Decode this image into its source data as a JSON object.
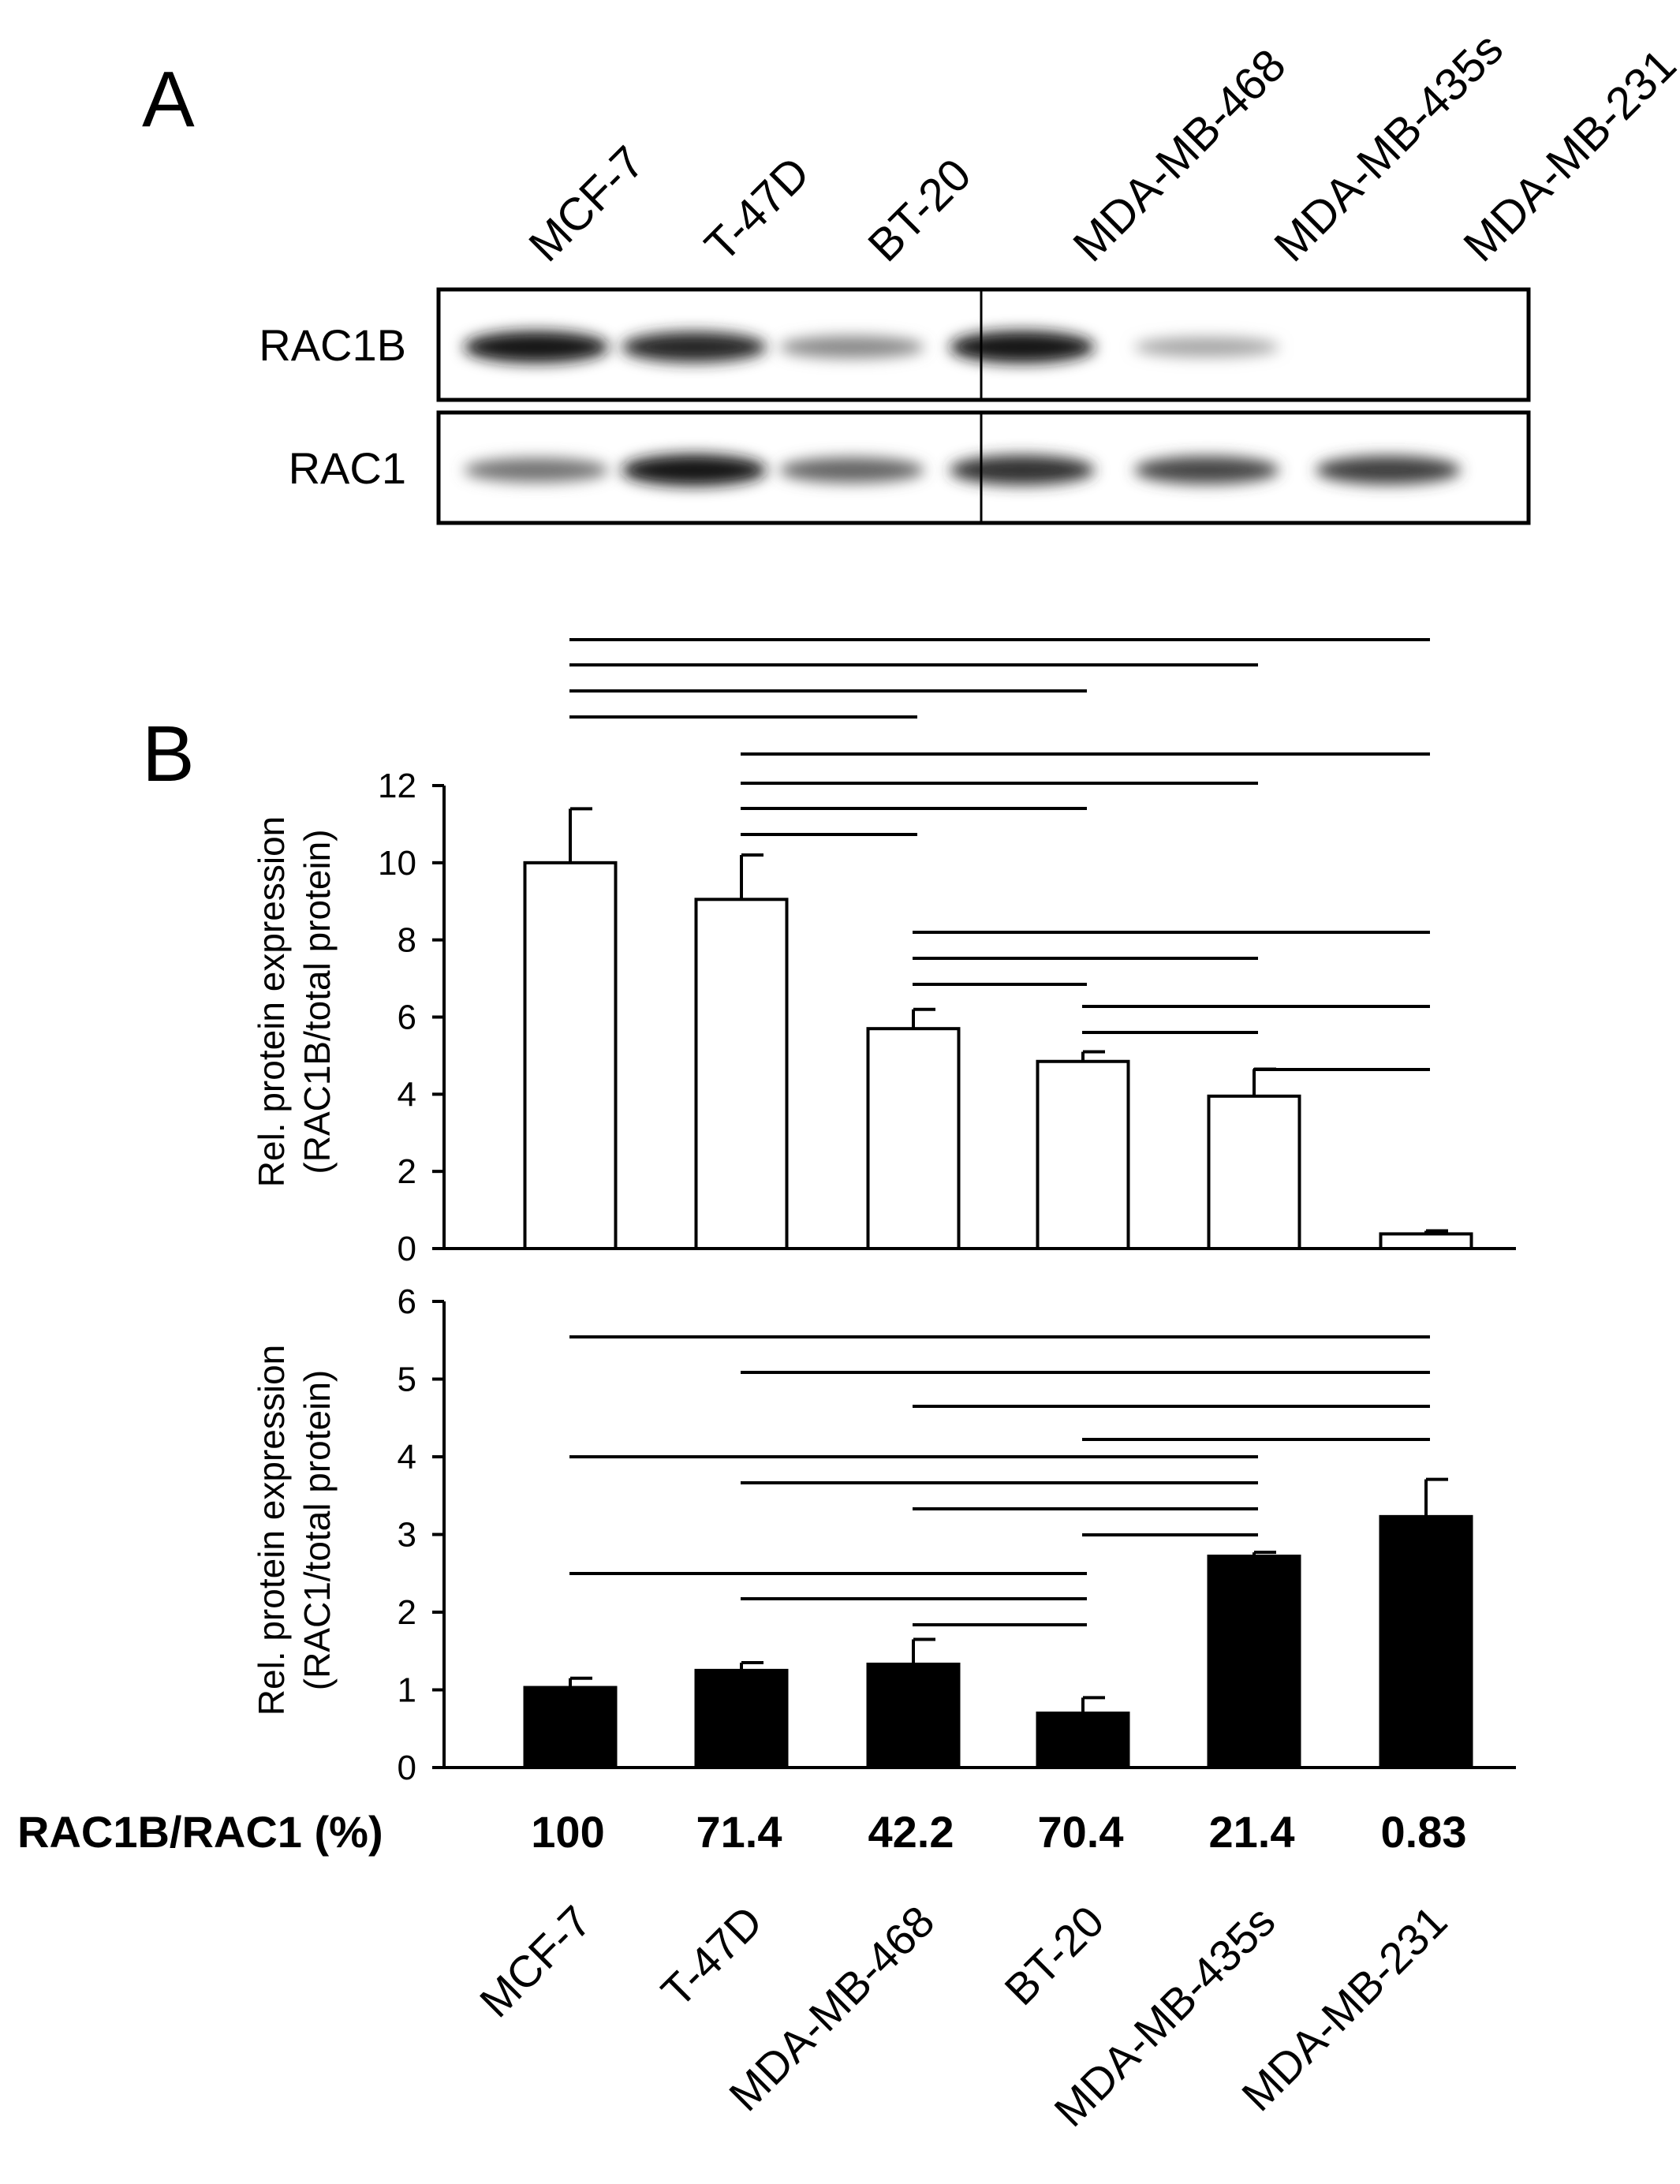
{
  "panel_a": {
    "label": "A",
    "lane_labels": [
      "MCF-7",
      "T-47D",
      "BT-20",
      "MDA-MB-468",
      "MDA-MB-435s",
      "MDA-MB-231"
    ],
    "rows": [
      {
        "label": "RAC1B",
        "intensity": [
          0.93,
          0.85,
          0.33,
          0.95,
          0.18,
          0.0
        ]
      },
      {
        "label": "RAC1",
        "intensity": [
          0.45,
          0.92,
          0.52,
          0.8,
          0.68,
          0.72
        ]
      }
    ]
  },
  "panel_b": {
    "label": "B",
    "ratio_row_label": "RAC1B/RAC1 (%)",
    "ratio_values": [
      "100",
      "71.4",
      "42.2",
      "70.4",
      "21.4",
      "0.83"
    ]
  },
  "chart_data": [
    {
      "type": "bar",
      "categories": [
        "MCF-7",
        "T-47D",
        "MDA-MB-468",
        "BT-20",
        "MDA-MB-435s",
        "MDA-MB-231"
      ],
      "values": [
        10.0,
        9.05,
        5.7,
        4.85,
        3.95,
        0.38
      ],
      "errors": [
        1.4,
        1.15,
        0.5,
        0.25,
        0.7,
        0.08
      ],
      "fill": "#ffffff",
      "ylabel_lines": [
        "Rel. protein expression",
        "(RAC1B/total protein)"
      ],
      "ylim": [
        0,
        12
      ],
      "yticks": [
        0,
        2,
        4,
        6,
        8,
        10,
        12
      ],
      "significance": [
        [
          0,
          5
        ],
        [
          0,
          4
        ],
        [
          0,
          3
        ],
        [
          0,
          2
        ],
        [
          1,
          5
        ],
        [
          1,
          4
        ],
        [
          1,
          3
        ],
        [
          1,
          2
        ],
        [
          2,
          5
        ],
        [
          2,
          4
        ],
        [
          2,
          3
        ],
        [
          3,
          5
        ],
        [
          3,
          4
        ],
        [
          4,
          5
        ]
      ]
    },
    {
      "type": "bar",
      "categories": [
        "MCF-7",
        "T-47D",
        "MDA-MB-468",
        "BT-20",
        "MDA-MB-435s",
        "MDA-MB-231"
      ],
      "values": [
        1.03,
        1.25,
        1.33,
        0.7,
        2.72,
        3.23
      ],
      "errors": [
        0.12,
        0.1,
        0.32,
        0.2,
        0.05,
        0.48
      ],
      "fill": "#000000",
      "ylabel_lines": [
        "Rel. protein expression",
        "(RAC1/total protein)"
      ],
      "ylim": [
        0,
        6
      ],
      "yticks": [
        0,
        1,
        2,
        3,
        4,
        5,
        6
      ],
      "significance": [
        [
          0,
          5
        ],
        [
          1,
          5
        ],
        [
          2,
          5
        ],
        [
          3,
          5
        ],
        [
          0,
          4
        ],
        [
          1,
          4
        ],
        [
          2,
          4
        ],
        [
          3,
          4
        ],
        [
          0,
          3
        ],
        [
          1,
          3
        ],
        [
          2,
          3
        ]
      ]
    }
  ]
}
